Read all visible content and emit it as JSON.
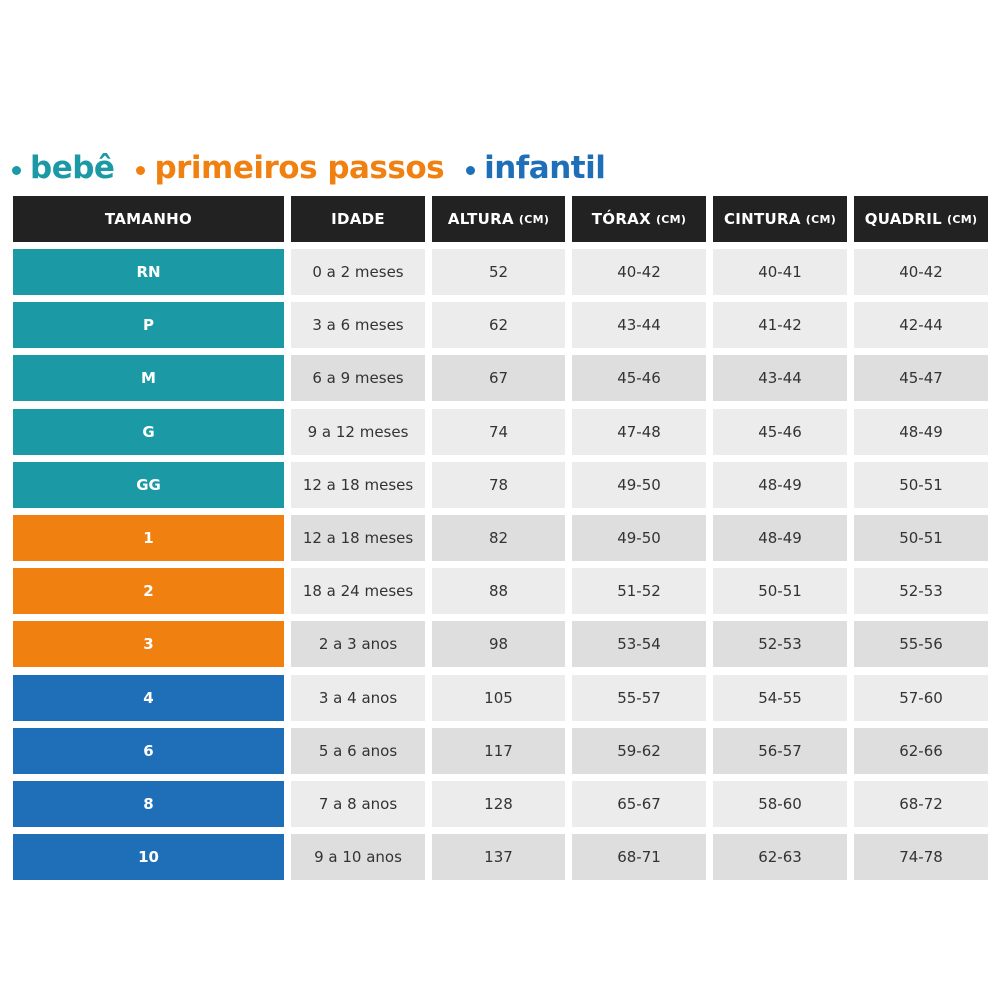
{
  "legend": [
    {
      "label": "bebê",
      "color": "#1b9aa6"
    },
    {
      "label": "primeiros passos",
      "color": "#f08010"
    },
    {
      "label": "infantil",
      "color": "#1f6fb8"
    }
  ],
  "columns": [
    {
      "label": "TAMANHO",
      "unit": ""
    },
    {
      "label": "IDADE",
      "unit": ""
    },
    {
      "label": "ALTURA",
      "unit": "(CM)"
    },
    {
      "label": "TÓRAX",
      "unit": "(CM)"
    },
    {
      "label": "CINTURA",
      "unit": "(CM)"
    },
    {
      "label": "QUADRIL",
      "unit": "(CM)"
    }
  ],
  "rows": [
    {
      "group": 0,
      "shaded": false,
      "cells": [
        "RN",
        "0 a 2 meses",
        "52",
        "40-42",
        "40-41",
        "40-42"
      ]
    },
    {
      "group": 0,
      "shaded": false,
      "cells": [
        "P",
        "3 a 6 meses",
        "62",
        "43-44",
        "41-42",
        "42-44"
      ]
    },
    {
      "group": 0,
      "shaded": true,
      "cells": [
        "M",
        "6 a 9 meses",
        "67",
        "45-46",
        "43-44",
        "45-47"
      ]
    },
    {
      "group": 0,
      "shaded": false,
      "cells": [
        "G",
        "9 a 12 meses",
        "74",
        "47-48",
        "45-46",
        "48-49"
      ]
    },
    {
      "group": 0,
      "shaded": false,
      "cells": [
        "GG",
        "12 a 18 meses",
        "78",
        "49-50",
        "48-49",
        "50-51"
      ]
    },
    {
      "group": 1,
      "shaded": true,
      "cells": [
        "1",
        "12 a 18 meses",
        "82",
        "49-50",
        "48-49",
        "50-51"
      ]
    },
    {
      "group": 1,
      "shaded": false,
      "cells": [
        "2",
        "18 a 24 meses",
        "88",
        "51-52",
        "50-51",
        "52-53"
      ]
    },
    {
      "group": 1,
      "shaded": true,
      "cells": [
        "3",
        "2 a 3 anos",
        "98",
        "53-54",
        "52-53",
        "55-56"
      ]
    },
    {
      "group": 2,
      "shaded": false,
      "cells": [
        "4",
        "3 a 4 anos",
        "105",
        "55-57",
        "54-55",
        "57-60"
      ]
    },
    {
      "group": 2,
      "shaded": true,
      "cells": [
        "6",
        "5 a 6 anos",
        "117",
        "59-62",
        "56-57",
        "62-66"
      ]
    },
    {
      "group": 2,
      "shaded": false,
      "cells": [
        "8",
        "7 a 8 anos",
        "128",
        "65-67",
        "58-60",
        "68-72"
      ]
    },
    {
      "group": 2,
      "shaded": true,
      "cells": [
        "10",
        "9 a 10 anos",
        "137",
        "68-71",
        "62-63",
        "74-78"
      ]
    }
  ]
}
